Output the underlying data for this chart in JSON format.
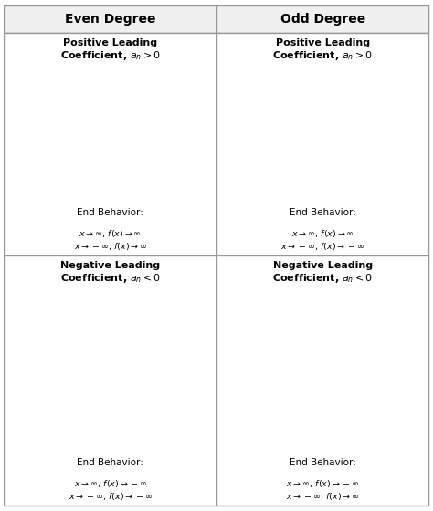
{
  "title_col1": "Even Degree",
  "title_col2": "Odd Degree",
  "cell_titles": [
    "Positive Leading\nCoefficient, $a_n > 0$",
    "Positive Leading\nCoefficient, $a_n > 0$",
    "Negative Leading\nCoefficient, $a_n < 0$",
    "Negative Leading\nCoefficient, $a_n < 0$"
  ],
  "end_behavior_header": "End Behavior:",
  "end_behaviors": [
    "$x \\rightarrow \\infty,\\, f(x) \\rightarrow \\infty$\n$x \\rightarrow -\\infty,\\, f(x) \\rightarrow \\infty$",
    "$x \\rightarrow \\infty,\\, f(x) \\rightarrow \\infty$\n$x \\rightarrow -\\infty,\\, f(x) \\rightarrow -\\infty$",
    "$x \\rightarrow \\infty,\\, f(x) \\rightarrow -\\infty$\n$x \\rightarrow -\\infty,\\, f(x) \\rightarrow -\\infty$",
    "$x \\rightarrow \\infty,\\, f(x) \\rightarrow -\\infty$\n$x \\rightarrow -\\infty,\\, f(x) \\rightarrow \\infty$"
  ],
  "curve_types": [
    "even_pos",
    "odd_pos",
    "even_neg",
    "odd_neg"
  ],
  "arrow_color": "#1a4a8a",
  "border_color": "#999999",
  "header_bg": "#f0f0f0",
  "cell_bg": "#ffffff"
}
